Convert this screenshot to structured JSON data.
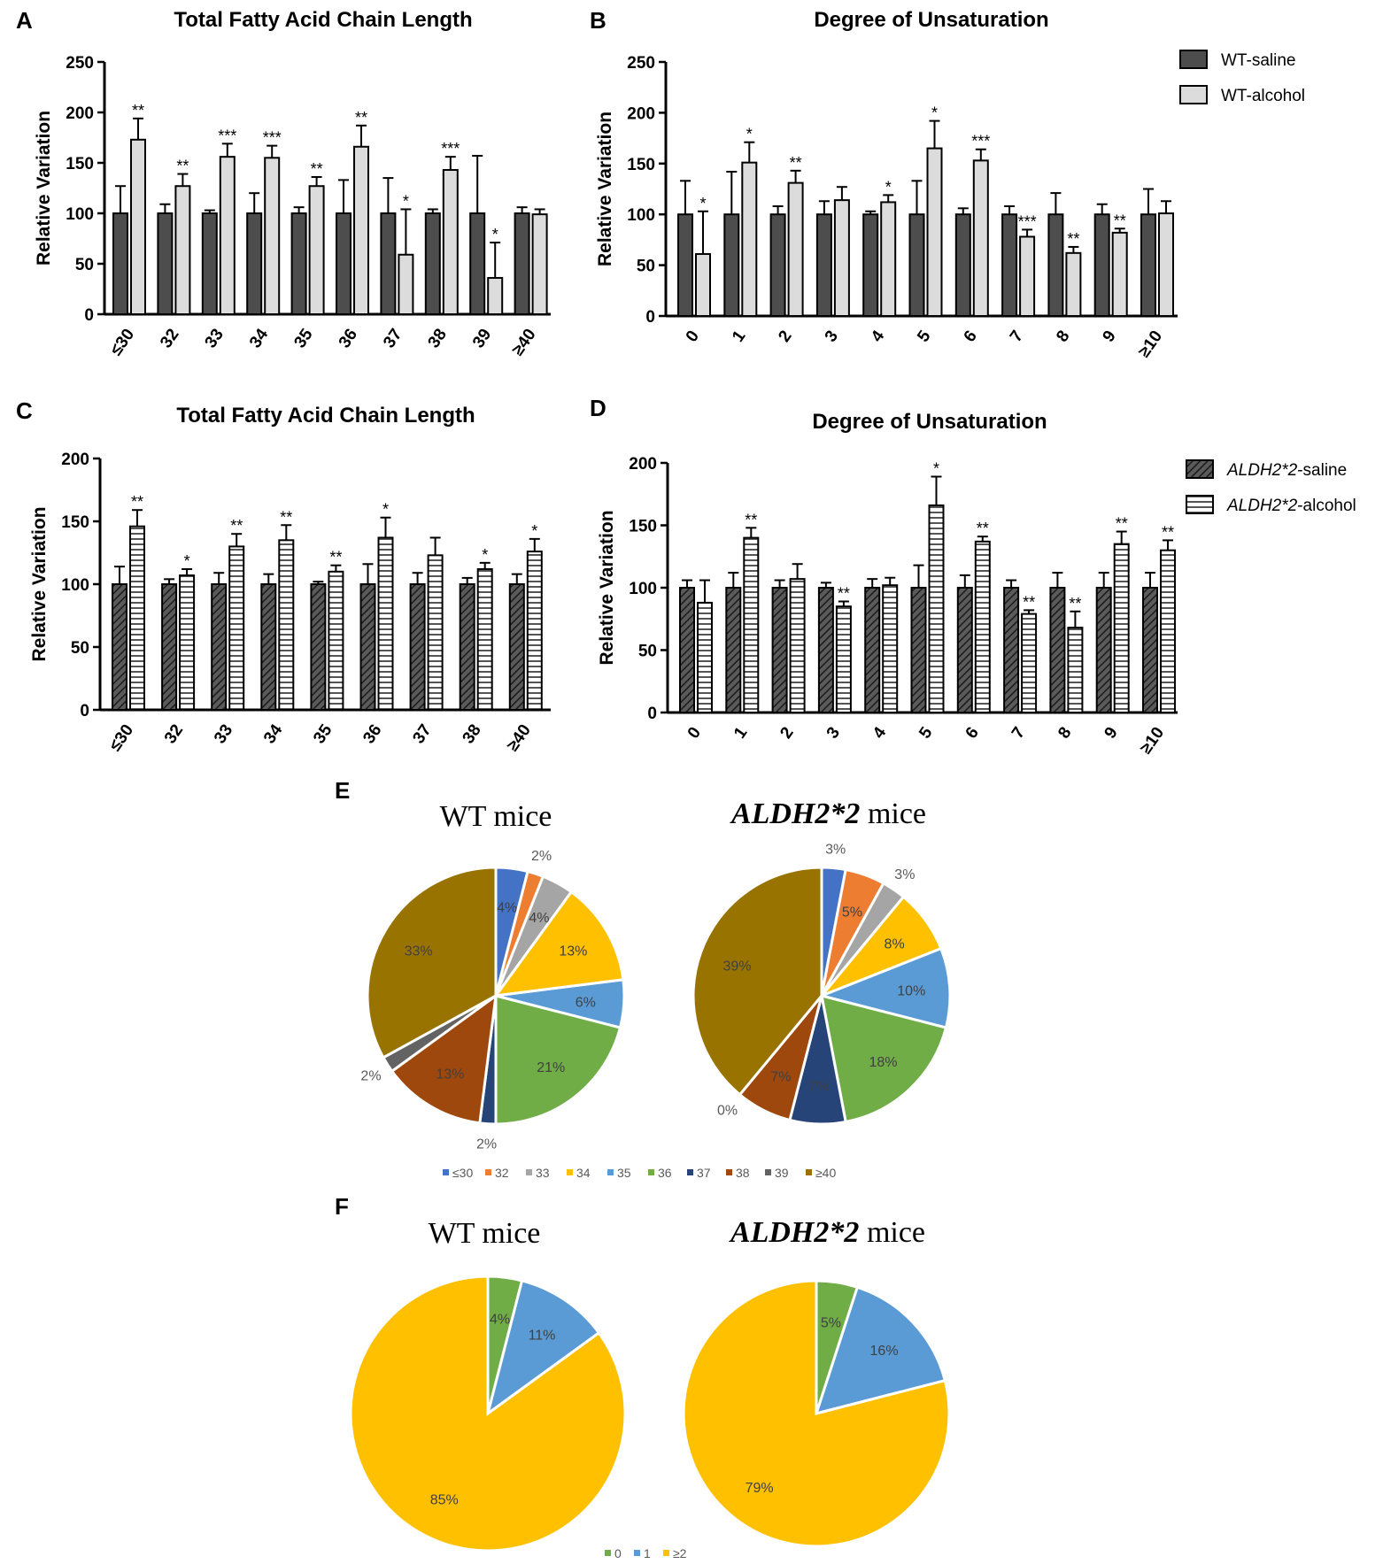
{
  "colors": {
    "dark_bar": "#4d4d4d",
    "light_bar": "#dcdcdc",
    "stripe_bg": "#ffffff",
    "pie": [
      "#4472c4",
      "#ed7d31",
      "#a5a5a5",
      "#ffc000",
      "#5b9bd5",
      "#70ad47",
      "#264478",
      "#9e480e",
      "#636363",
      "#997300"
    ],
    "pie_f": [
      "#70ad47",
      "#5b9bd5",
      "#ffc000"
    ]
  },
  "chart_data": [
    {
      "panel": "A",
      "type": "bar",
      "title": "Total Fatty Acid Chain Length",
      "ylabel": "Relative Variation",
      "ylim": [
        0,
        250
      ],
      "yticks": [
        0,
        50,
        100,
        150,
        200,
        250
      ],
      "categories": [
        "≤30",
        "32",
        "33",
        "34",
        "35",
        "36",
        "37",
        "38",
        "39",
        "≥40"
      ],
      "series": [
        {
          "name": "WT-saline",
          "style": "dark",
          "values": [
            100,
            100,
            100,
            100,
            100,
            100,
            100,
            100,
            100,
            100
          ],
          "errors": [
            27,
            9,
            3,
            20,
            6,
            33,
            35,
            4,
            57,
            6
          ]
        },
        {
          "name": "WT-alcohol",
          "style": "light",
          "values": [
            173,
            127,
            156,
            155,
            127,
            166,
            59,
            143,
            36,
            99
          ],
          "errors": [
            21,
            12,
            13,
            12,
            9,
            21,
            45,
            13,
            35,
            5
          ]
        }
      ],
      "significance": [
        "**",
        "**",
        "***",
        "***",
        "**",
        "**",
        "*",
        "***",
        "*",
        ""
      ]
    },
    {
      "panel": "B",
      "type": "bar",
      "title": "Degree of Unsaturation",
      "ylabel": "Relative Variation",
      "ylim": [
        0,
        250
      ],
      "yticks": [
        0,
        50,
        100,
        150,
        200,
        250
      ],
      "categories": [
        "0",
        "1",
        "2",
        "3",
        "4",
        "5",
        "6",
        "7",
        "8",
        "9",
        "≥10"
      ],
      "series": [
        {
          "name": "WT-saline",
          "style": "dark",
          "values": [
            100,
            100,
            100,
            100,
            100,
            100,
            100,
            100,
            100,
            100,
            100
          ],
          "errors": [
            33,
            42,
            8,
            13,
            3,
            33,
            6,
            8,
            21,
            10,
            25
          ]
        },
        {
          "name": "WT-alcohol",
          "style": "light",
          "values": [
            61,
            151,
            131,
            114,
            112,
            165,
            153,
            78,
            62,
            82,
            101
          ],
          "errors": [
            42,
            20,
            12,
            13,
            7,
            27,
            11,
            7,
            6,
            4,
            12
          ]
        }
      ],
      "significance": [
        "*",
        "*",
        "**",
        "",
        "*",
        "*",
        "***",
        "***",
        "**",
        "**",
        ""
      ],
      "legend": [
        "WT-saline",
        "WT-alcohol"
      ]
    },
    {
      "panel": "C",
      "type": "bar",
      "title": "Total Fatty Acid Chain Length",
      "ylabel": "Relative Variation",
      "ylim": [
        0,
        200
      ],
      "yticks": [
        0,
        50,
        100,
        150,
        200
      ],
      "categories": [
        "≤30",
        "32",
        "33",
        "34",
        "35",
        "36",
        "37",
        "38",
        "≥40"
      ],
      "series": [
        {
          "name": "ALDH2*2-saline",
          "style": "hatch",
          "values": [
            100,
            100,
            100,
            100,
            100,
            100,
            100,
            100,
            100
          ],
          "errors": [
            14,
            4,
            9,
            8,
            2,
            16,
            9,
            5,
            8
          ]
        },
        {
          "name": "ALDH2*2-alcohol",
          "style": "hstripe",
          "values": [
            146,
            107,
            130,
            135,
            110,
            137,
            123,
            112,
            126
          ],
          "errors": [
            13,
            5,
            10,
            12,
            5,
            16,
            14,
            5,
            10
          ]
        }
      ],
      "significance": [
        "**",
        "*",
        "**",
        "**",
        "**",
        "*",
        "",
        "*",
        "*"
      ]
    },
    {
      "panel": "D",
      "type": "bar",
      "title": "Degree of Unsaturation",
      "ylabel": "Relative Variation",
      "ylim": [
        0,
        200
      ],
      "yticks": [
        0,
        50,
        100,
        150,
        200
      ],
      "categories": [
        "0",
        "1",
        "2",
        "3",
        "4",
        "5",
        "6",
        "7",
        "8",
        "9",
        "≥10"
      ],
      "series": [
        {
          "name": "ALDH2*2-saline",
          "style": "hatch",
          "values": [
            100,
            100,
            100,
            100,
            100,
            100,
            100,
            100,
            100,
            100,
            100
          ],
          "errors": [
            6,
            12,
            6,
            4,
            7,
            18,
            10,
            6,
            12,
            12,
            12
          ]
        },
        {
          "name": "ALDH2*2-alcohol",
          "style": "hstripe",
          "values": [
            88,
            140,
            107,
            85,
            102,
            166,
            137,
            79,
            68,
            135,
            130
          ],
          "errors": [
            18,
            8,
            12,
            4,
            6,
            23,
            4,
            3,
            13,
            10,
            8
          ]
        }
      ],
      "significance": [
        "",
        "**",
        "",
        "**",
        "",
        "*",
        "**",
        "**",
        "**",
        "**",
        "**"
      ],
      "legend": [
        "ALDH2*2-saline",
        "ALDH2*2-alcohol"
      ]
    },
    {
      "panel": "E",
      "type": "pie",
      "legend": [
        "≤30",
        "32",
        "33",
        "34",
        "35",
        "36",
        "37",
        "38",
        "39",
        "≥40"
      ],
      "pies": [
        {
          "title": "WT mice",
          "values": [
            4,
            2,
            4,
            13,
            6,
            21,
            2,
            13,
            2,
            33
          ],
          "labels": [
            "4%",
            "2%",
            "4%",
            "13%",
            "6%",
            "21%",
            "2%",
            "13%",
            "2%",
            "33%"
          ]
        },
        {
          "title_prefix": "ALDH2*2",
          "title_suffix": " mice",
          "values": [
            3,
            5,
            3,
            8,
            10,
            18,
            7,
            7,
            0,
            39
          ],
          "labels": [
            "3%",
            "5%",
            "3%",
            "8%",
            "10%",
            "18%",
            "7%",
            "7%",
            "0%",
            "39%"
          ]
        }
      ]
    },
    {
      "panel": "F",
      "type": "pie",
      "legend": [
        "0",
        "1",
        "≥2"
      ],
      "pies": [
        {
          "title": "WT mice",
          "values": [
            4,
            11,
            85
          ],
          "labels": [
            "4%",
            "11%",
            "85%"
          ]
        },
        {
          "title_prefix": "ALDH2*2",
          "title_suffix": " mice",
          "values": [
            5,
            16,
            79
          ],
          "labels": [
            "5%",
            "16%",
            "79%"
          ]
        }
      ]
    }
  ]
}
